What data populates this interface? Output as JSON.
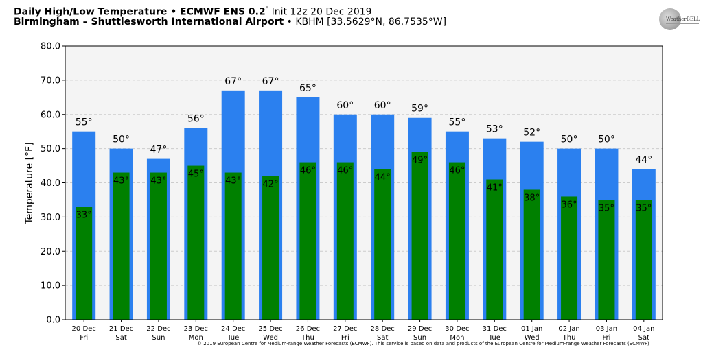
{
  "header": {
    "line1_bold": "Daily High/Low Temperature • ECMWF ENS 0.2",
    "line1_deg": "°",
    "line1_rest": " Init 12z 20 Dec 2019",
    "line2_bold": "Birmingham – Shuttlesworth International Airport",
    "line2_rest": " • KBHM [33.5629°N, 86.7535°W]"
  },
  "logo": {
    "text": "WeatherBELL"
  },
  "copyright": "© 2019 European Centre for Medium-range Weather Forecasts (ECMWF). This service is based on data and products of the European Centre for Medium-range Weather Forecasts (ECMWF)",
  "colors": {
    "high": "#2b80ef",
    "low": "#008000",
    "plot_bg": "#f4f4f4",
    "grid": "#cccccc"
  },
  "chart_data": {
    "type": "bar",
    "ylabel": "Temperature [°F]",
    "ylim": [
      0,
      80
    ],
    "yticks": [
      "0.0",
      "10.0",
      "20.0",
      "30.0",
      "40.0",
      "50.0",
      "60.0",
      "70.0",
      "80.0"
    ],
    "grid": "horizontal dashed",
    "categories": [
      [
        "20 Dec",
        "Fri"
      ],
      [
        "21 Dec",
        "Sat"
      ],
      [
        "22 Dec",
        "Sun"
      ],
      [
        "23 Dec",
        "Mon"
      ],
      [
        "24 Dec",
        "Tue"
      ],
      [
        "25 Dec",
        "Wed"
      ],
      [
        "26 Dec",
        "Thu"
      ],
      [
        "27 Dec",
        "Fri"
      ],
      [
        "28 Dec",
        "Sat"
      ],
      [
        "29 Dec",
        "Sun"
      ],
      [
        "30 Dec",
        "Mon"
      ],
      [
        "31 Dec",
        "Tue"
      ],
      [
        "01 Jan",
        "Wed"
      ],
      [
        "02 Jan",
        "Thu"
      ],
      [
        "03 Jan",
        "Fri"
      ],
      [
        "04 Jan",
        "Sat"
      ]
    ],
    "series": [
      {
        "values": [
          55,
          50,
          47,
          56,
          67,
          67,
          65,
          60,
          60,
          59,
          55,
          53,
          52,
          50,
          50,
          44
        ]
      },
      {
        "values": [
          33,
          43,
          43,
          45,
          43,
          42,
          46,
          46,
          44,
          49,
          46,
          41,
          38,
          36,
          35,
          35
        ]
      }
    ]
  }
}
